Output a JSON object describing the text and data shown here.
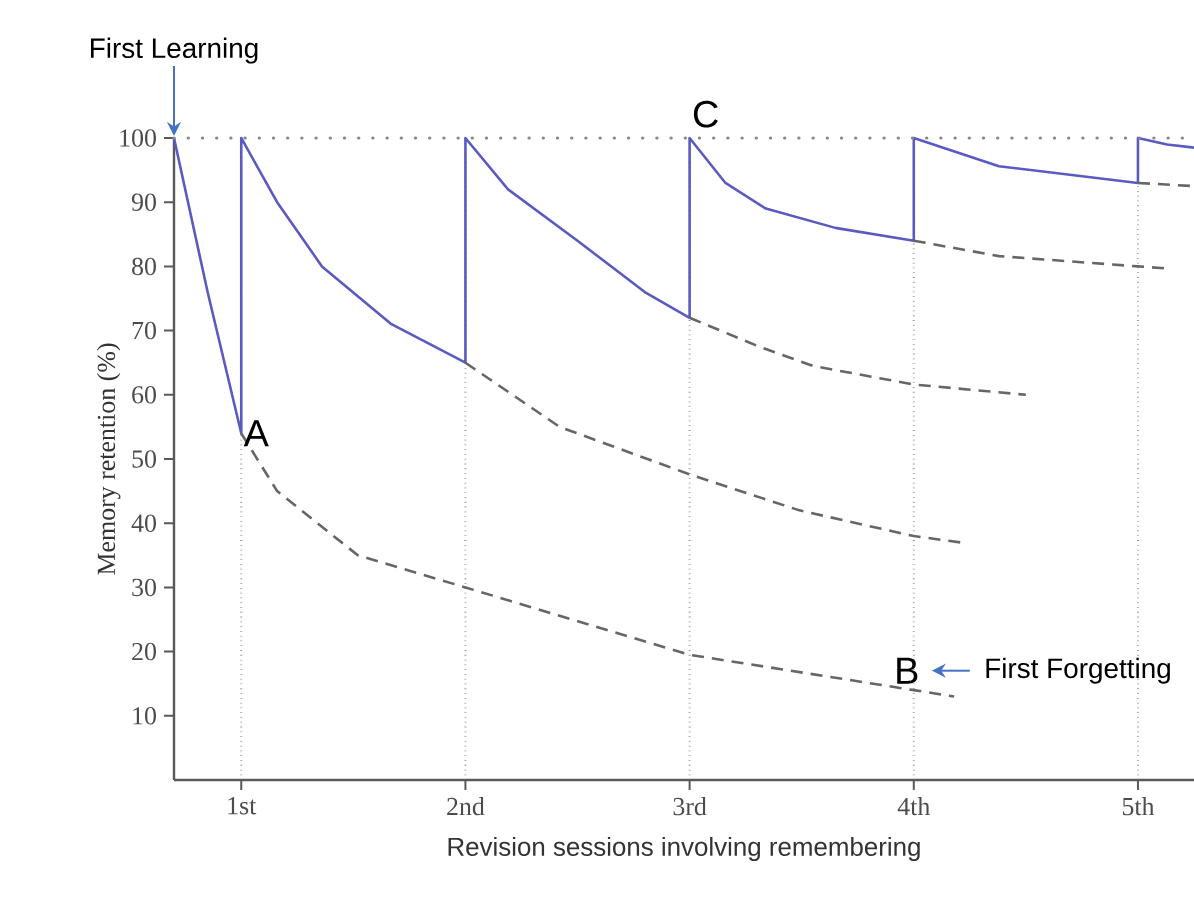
{
  "chart_data": {
    "type": "line",
    "xlabel": "Revision sessions involving remembering",
    "ylabel": "Memory retention (%)",
    "xlim": [
      0.7,
      5.25
    ],
    "ylim": [
      0,
      100
    ],
    "xticks": [
      {
        "value": 1,
        "label": "1st"
      },
      {
        "value": 2,
        "label": "2nd"
      },
      {
        "value": 3,
        "label": "3rd"
      },
      {
        "value": 4,
        "label": "4th"
      },
      {
        "value": 5,
        "label": "5th"
      }
    ],
    "yticks": [
      10,
      20,
      30,
      40,
      50,
      60,
      70,
      80,
      90,
      100
    ],
    "grid": "x",
    "marker": "none",
    "ref_lines": [
      {
        "axis": "y",
        "value": 100,
        "line_style": "dotted",
        "color": "#888888"
      }
    ],
    "series": [
      {
        "color": "#5a5ac0",
        "line_style": "solid",
        "x": [
          0.7,
          0.85,
          1,
          1,
          1.16,
          1.36,
          1.67,
          2,
          2,
          2.19,
          2.5,
          2.8,
          3,
          3,
          3.16,
          3.34,
          3.65,
          4,
          4,
          4.38,
          5,
          5,
          5.13,
          5.25
        ],
        "values": [
          100,
          76,
          54,
          100,
          90,
          80,
          71,
          65,
          100,
          92,
          84,
          76,
          72,
          100,
          93,
          89,
          86,
          84,
          100,
          95.6,
          93,
          100,
          99,
          98.5
        ]
      },
      {
        "color": "#666666",
        "line_style": "dashed",
        "x": [
          1,
          1.16,
          1.52,
          2,
          3,
          4,
          4.18
        ],
        "values": [
          54,
          45,
          35,
          30,
          19.5,
          14,
          13
        ]
      },
      {
        "color": "#666666",
        "line_style": "dashed",
        "x": [
          2,
          2.42,
          3,
          3.49,
          4,
          4.21
        ],
        "values": [
          65,
          55,
          47.6,
          42,
          38,
          37
        ]
      },
      {
        "color": "#666666",
        "line_style": "dashed",
        "x": [
          3,
          3.31,
          3.55,
          4,
          4.5
        ],
        "values": [
          72,
          67.5,
          64.5,
          61.6,
          60
        ]
      },
      {
        "color": "#666666",
        "line_style": "dashed",
        "x": [
          4,
          4.38,
          5,
          5.12
        ],
        "values": [
          84,
          81.6,
          80,
          79.7
        ]
      },
      {
        "color": "#666666",
        "line_style": "dashed",
        "x": [
          5,
          5.25
        ],
        "values": [
          93,
          92.5
        ]
      }
    ],
    "annotations": [
      {
        "text": "First Learning",
        "x": 0.7,
        "y": 100
      },
      {
        "text": "A",
        "x": 1,
        "y": 54
      },
      {
        "text": "B",
        "x": 4,
        "y": 14
      },
      {
        "text": "C",
        "x": 3,
        "y": 100
      },
      "First Forgetting"
    ]
  }
}
